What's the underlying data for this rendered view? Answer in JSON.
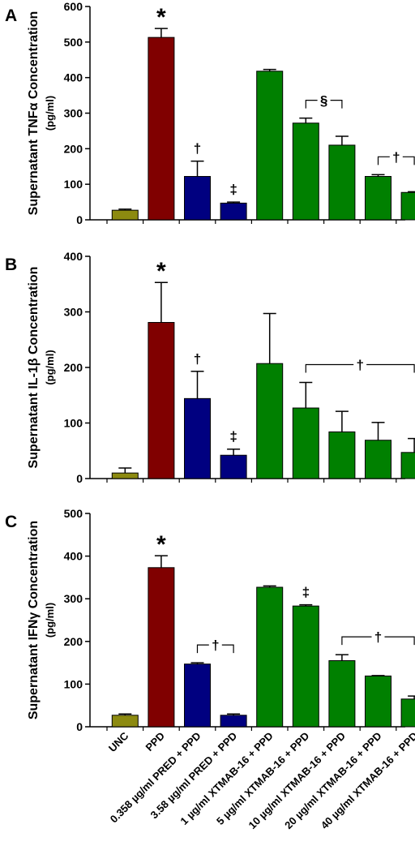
{
  "figure": {
    "x_categories": [
      "UNC",
      "PPD",
      "0.358 µg/ml PRED + PPD",
      "3.58 µg/ml PRED + PPD",
      "1 µg/ml XTMAB-16 + PPD",
      "5 µg/ml XTMAB-16 + PPD",
      "10 µg/ml XTMAB-16 + PPD",
      "20 µg/ml XTMAB-16 + PPD",
      "40 µg/ml XTMAB-16 + PPD"
    ],
    "colors": {
      "UNC": "#8c8a10",
      "PPD": "#800000",
      "PRED": "#000080",
      "XTMAB": "#008000",
      "error": "#000000"
    }
  },
  "chart_data": [
    {
      "type": "bar",
      "panel_label": "A",
      "ylabel": "Supernatant TNFα Concentration",
      "yunit": "(pg/ml)",
      "ylim": [
        0,
        600
      ],
      "yticks": [
        0,
        100,
        200,
        300,
        400,
        500,
        600
      ],
      "categories": [
        "UNC",
        "PPD",
        "0.358 µg/ml PRED + PPD",
        "3.58 µg/ml PRED + PPD",
        "1 µg/ml XTMAB-16 + PPD",
        "5 µg/ml XTMAB-16 + PPD",
        "10 µg/ml XTMAB-16 + PPD",
        "20 µg/ml XTMAB-16 + PPD",
        "40 µg/ml XTMAB-16 + PPD"
      ],
      "values": [
        27,
        513,
        122,
        47,
        418,
        272,
        210,
        122,
        77
      ],
      "errors": [
        3,
        25,
        43,
        3,
        5,
        14,
        25,
        5,
        2
      ],
      "annotations": [
        {
          "text": "*",
          "at": 1
        },
        {
          "text": "†",
          "at": 2
        },
        {
          "text": "‡",
          "at": 3
        },
        {
          "text": "§",
          "span": [
            5,
            6
          ]
        },
        {
          "text": "†",
          "span": [
            7,
            8
          ]
        }
      ]
    },
    {
      "type": "bar",
      "panel_label": "B",
      "ylabel": "Supernatant IL-1β Concentration",
      "yunit": "(pg/ml)",
      "ylim": [
        0,
        400
      ],
      "yticks": [
        0,
        100,
        200,
        300,
        400
      ],
      "categories": [
        "UNC",
        "PPD",
        "0.358 µg/ml PRED + PPD",
        "3.58 µg/ml PRED + PPD",
        "1 µg/ml XTMAB-16 + PPD",
        "5 µg/ml XTMAB-16 + PPD",
        "10 µg/ml XTMAB-16 + PPD",
        "20 µg/ml XTMAB-16 + PPD",
        "40 µg/ml XTMAB-16 + PPD"
      ],
      "values": [
        10,
        281,
        144,
        42,
        207,
        127,
        84,
        69,
        47
      ],
      "errors": [
        9,
        72,
        49,
        11,
        90,
        46,
        37,
        32,
        25
      ],
      "annotations": [
        {
          "text": "*",
          "at": 1
        },
        {
          "text": "†",
          "at": 2
        },
        {
          "text": "‡",
          "at": 3
        },
        {
          "text": "†",
          "span": [
            5,
            8
          ]
        }
      ]
    },
    {
      "type": "bar",
      "panel_label": "C",
      "ylabel": "Supernatant IFNγ Concentration",
      "yunit": "(pg/ml)",
      "ylim": [
        0,
        500
      ],
      "yticks": [
        0,
        100,
        200,
        300,
        400,
        500
      ],
      "categories": [
        "UNC",
        "PPD",
        "0.358 µg/ml PRED + PPD",
        "3.58 µg/ml PRED + PPD",
        "1 µg/ml XTMAB-16 + PPD",
        "5 µg/ml XTMAB-16 + PPD",
        "10 µg/ml XTMAB-16 + PPD",
        "20 µg/ml XTMAB-16 + PPD",
        "40 µg/ml XTMAB-16 + PPD"
      ],
      "values": [
        27,
        373,
        147,
        27,
        327,
        283,
        155,
        119,
        65
      ],
      "errors": [
        3,
        28,
        3,
        3,
        3,
        3,
        14,
        1,
        7
      ],
      "annotations": [
        {
          "text": "*",
          "at": 1
        },
        {
          "text": "†",
          "span": [
            2,
            3
          ]
        },
        {
          "text": "‡",
          "at": 5
        },
        {
          "text": "†",
          "span": [
            6,
            8
          ]
        }
      ]
    }
  ]
}
